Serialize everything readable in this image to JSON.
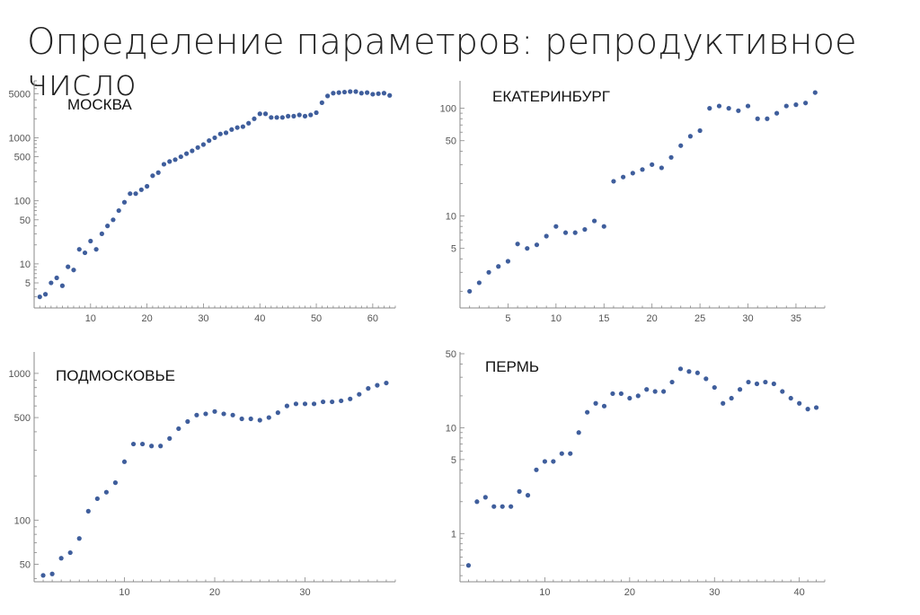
{
  "title": "Определение параметров: репродуктивное число",
  "colors": {
    "point": "#3f5e9c",
    "axis": "#888888",
    "text": "#222222"
  },
  "chart_data": [
    {
      "type": "scatter",
      "title": "МОСКВА",
      "yscale": "log",
      "xlim": [
        0,
        64
      ],
      "ylim": [
        2,
        8000
      ],
      "xticks": [
        10,
        20,
        30,
        40,
        50,
        60
      ],
      "ytick_labels": [
        5000,
        1000,
        500,
        100,
        50,
        10,
        5
      ],
      "x": [
        1,
        2,
        3,
        4,
        5,
        6,
        7,
        8,
        9,
        10,
        11,
        12,
        13,
        14,
        15,
        16,
        17,
        18,
        19,
        20,
        21,
        22,
        23,
        24,
        25,
        26,
        27,
        28,
        29,
        30,
        31,
        32,
        33,
        34,
        35,
        36,
        37,
        38,
        39,
        40,
        41,
        42,
        43,
        44,
        45,
        46,
        47,
        48,
        49,
        50,
        51,
        52,
        53,
        54,
        55,
        56,
        57,
        58,
        59,
        60,
        61,
        62,
        63
      ],
      "y": [
        3,
        3.3,
        5,
        6,
        4.5,
        9,
        8,
        17,
        15,
        23,
        17,
        30,
        40,
        50,
        70,
        95,
        130,
        130,
        150,
        170,
        250,
        280,
        380,
        420,
        450,
        500,
        560,
        620,
        700,
        780,
        900,
        1000,
        1150,
        1200,
        1350,
        1450,
        1500,
        1700,
        2000,
        2400,
        2400,
        2100,
        2100,
        2100,
        2200,
        2200,
        2300,
        2200,
        2300,
        2500,
        3600,
        4600,
        5100,
        5200,
        5300,
        5400,
        5400,
        5100,
        5200,
        4900,
        5000,
        5100,
        4700
      ]
    },
    {
      "type": "scatter",
      "title": "ЕКАТЕРИНБУРГ",
      "yscale": "log",
      "xlim": [
        0,
        38
      ],
      "ylim": [
        1.4,
        180
      ],
      "xticks": [
        5,
        10,
        15,
        20,
        25,
        30,
        35
      ],
      "ytick_labels": [
        100,
        50,
        10,
        5
      ],
      "x": [
        1,
        2,
        3,
        4,
        5,
        6,
        7,
        8,
        9,
        10,
        11,
        12,
        13,
        14,
        15,
        16,
        17,
        18,
        19,
        20,
        21,
        22,
        23,
        24,
        25,
        26,
        27,
        28,
        29,
        30,
        31,
        32,
        33,
        34,
        35,
        36,
        37
      ],
      "y": [
        2,
        2.4,
        3,
        3.4,
        3.8,
        5.5,
        5,
        5.4,
        6.5,
        8,
        7,
        7,
        7.5,
        9,
        8,
        21,
        23,
        25,
        27,
        30,
        28,
        35,
        45,
        55,
        62,
        100,
        105,
        100,
        95,
        105,
        80,
        80,
        90,
        105,
        108,
        112,
        140
      ]
    },
    {
      "type": "scatter",
      "title": "ПОДМОСКОВЬЕ",
      "yscale": "log",
      "xlim": [
        0,
        40
      ],
      "ylim": [
        38,
        1400
      ],
      "xticks": [
        10,
        20,
        30
      ],
      "ytick_labels": [
        1000,
        500,
        100,
        50
      ],
      "x": [
        1,
        2,
        3,
        4,
        5,
        6,
        7,
        8,
        9,
        10,
        11,
        12,
        13,
        14,
        15,
        16,
        17,
        18,
        19,
        20,
        21,
        22,
        23,
        24,
        25,
        26,
        27,
        28,
        29,
        30,
        31,
        32,
        33,
        34,
        35,
        36,
        37,
        38,
        39
      ],
      "y": [
        42,
        43,
        55,
        60,
        75,
        115,
        140,
        155,
        180,
        250,
        330,
        330,
        320,
        320,
        360,
        420,
        470,
        520,
        530,
        550,
        530,
        520,
        490,
        490,
        480,
        500,
        540,
        600,
        620,
        620,
        620,
        640,
        640,
        650,
        670,
        720,
        790,
        830,
        860
      ]
    },
    {
      "type": "scatter",
      "title": "ПЕРМЬ",
      "yscale": "log",
      "xlim": [
        0,
        43
      ],
      "ylim": [
        0.35,
        52
      ],
      "xticks": [
        10,
        20,
        30,
        40
      ],
      "ytick_labels": [
        50,
        10,
        5,
        1
      ],
      "x": [
        1,
        2,
        3,
        4,
        5,
        6,
        7,
        8,
        9,
        10,
        11,
        12,
        13,
        14,
        15,
        16,
        17,
        18,
        19,
        20,
        21,
        22,
        23,
        24,
        25,
        26,
        27,
        28,
        29,
        30,
        31,
        32,
        33,
        34,
        35,
        36,
        37,
        38,
        39,
        40,
        41,
        42
      ],
      "y": [
        0.5,
        2,
        2.2,
        1.8,
        1.8,
        1.8,
        2.5,
        2.3,
        4,
        4.8,
        4.8,
        5.7,
        5.7,
        9,
        14,
        17,
        16,
        21,
        21,
        19,
        20,
        23,
        22,
        22,
        27,
        36,
        34,
        33,
        29,
        24,
        17,
        19,
        23,
        27,
        26,
        27,
        26,
        22,
        19,
        17,
        15,
        15.5
      ]
    }
  ]
}
